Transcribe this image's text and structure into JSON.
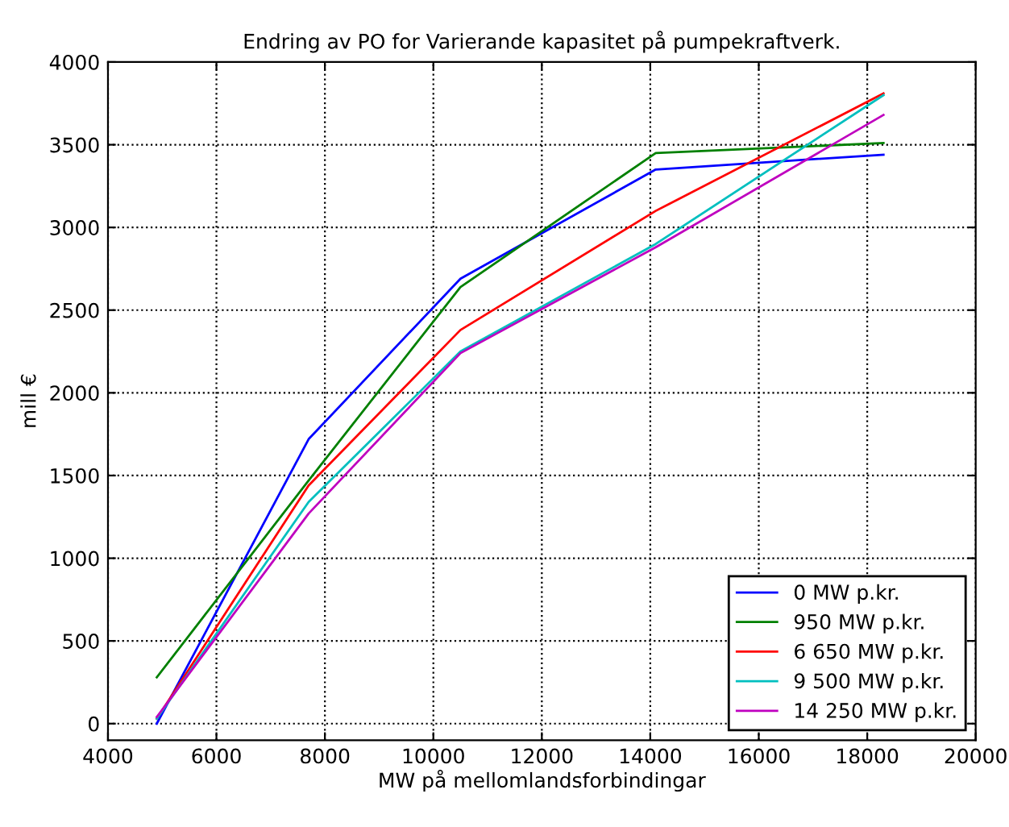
{
  "chart_data": {
    "type": "line",
    "title": "Endring av PO for Varierande kapasitet på pumpekraftverk.",
    "xlabel": "MW på mellomlandsforbindingar",
    "ylabel": "mill €",
    "x": [
      4900,
      7700,
      10500,
      14100,
      18300
    ],
    "series": [
      {
        "name": "0 MW p.kr.",
        "color": "#0000ff",
        "values": [
          0,
          1720,
          2690,
          3350,
          3440
        ]
      },
      {
        "name": "950 MW p.kr.",
        "color": "#008000",
        "values": [
          280,
          1470,
          2640,
          3450,
          3510
        ]
      },
      {
        "name": "6 650 MW p.kr.",
        "color": "#ff0000",
        "values": [
          30,
          1440,
          2380,
          3100,
          3810
        ]
      },
      {
        "name": "9 500 MW p.kr.",
        "color": "#00bfbf",
        "values": [
          30,
          1340,
          2250,
          2900,
          3800
        ]
      },
      {
        "name": "14 250 MW p.kr.",
        "color": "#bf00bf",
        "values": [
          40,
          1270,
          2240,
          2880,
          3680
        ]
      }
    ],
    "xlim": [
      4000,
      20000
    ],
    "xticks": [
      4000,
      6000,
      8000,
      10000,
      12000,
      14000,
      16000,
      18000,
      20000
    ],
    "ylim": [
      -100,
      4000
    ],
    "yticks": [
      0,
      500,
      1000,
      1500,
      2000,
      2500,
      3000,
      3500,
      4000
    ],
    "grid": true,
    "legend": "bottom right",
    "marker": "none",
    "line_style": "solid"
  }
}
